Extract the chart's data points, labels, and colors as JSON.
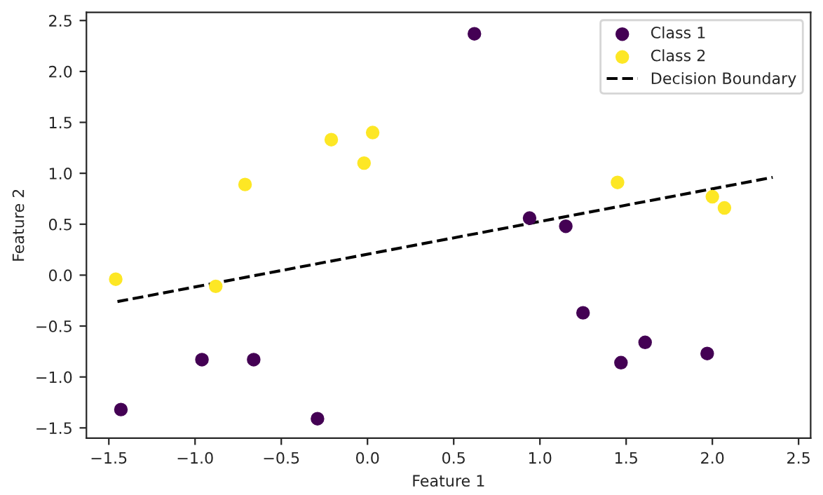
{
  "chart_data": {
    "type": "scatter",
    "xlabel": "Feature 1",
    "ylabel": "Feature 2",
    "series": [
      {
        "name": "Class 1",
        "color": "#440154",
        "x": [
          -1.43,
          -0.96,
          -0.66,
          -0.29,
          0.62,
          0.94,
          1.15,
          1.25,
          1.47,
          1.61,
          1.97
        ],
        "values": [
          -1.32,
          -0.83,
          -0.83,
          -1.41,
          2.37,
          0.56,
          0.48,
          -0.37,
          -0.86,
          -0.66,
          -0.77
        ]
      },
      {
        "name": "Class 2",
        "color": "#fde725",
        "x": [
          -1.46,
          -0.88,
          -0.71,
          -0.21,
          -0.02,
          0.03,
          1.45,
          2.0,
          2.07
        ],
        "values": [
          -0.04,
          -0.11,
          0.89,
          1.33,
          1.1,
          1.4,
          0.91,
          0.77,
          0.66
        ]
      },
      {
        "name": "Decision Boundary",
        "type": "line",
        "color": "#000000",
        "line_style": "dashed",
        "marker": "none",
        "x": [
          -1.45,
          2.35
        ],
        "values": [
          -0.26,
          0.96
        ]
      }
    ],
    "marker": "circle",
    "xlim": [
      -1.63,
      2.57
    ],
    "ylim": [
      -1.6,
      2.58
    ],
    "xticks": [
      {
        "value": -1.5,
        "label": "−1.5"
      },
      {
        "value": -1.0,
        "label": "−1.0"
      },
      {
        "value": -0.5,
        "label": "−0.5"
      },
      {
        "value": 0,
        "label": "0.0"
      },
      0.5,
      {
        "value": 1,
        "label": "1.0"
      },
      1.5,
      {
        "value": 2,
        "label": "2.0"
      },
      2.5
    ],
    "yticks": [
      {
        "value": -1.5,
        "label": "−1.5"
      },
      {
        "value": -1.0,
        "label": "−1.0"
      },
      {
        "value": -0.5,
        "label": "−0.5"
      },
      {
        "value": 0,
        "label": "0.0"
      },
      0.5,
      {
        "value": 1,
        "label": "1.0"
      },
      1.5,
      {
        "value": 2,
        "label": "2.0"
      },
      2.5
    ],
    "grid": false,
    "legend": "top right"
  }
}
